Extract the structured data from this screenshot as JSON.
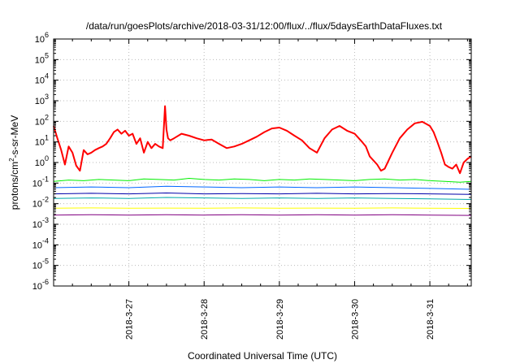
{
  "chart_data": {
    "type": "line",
    "title": "/data/run/goesPlots/archive/2018-03-31/12:00/flux/../flux/5daysEarthDataFluxes.txt",
    "xlabel": "Coordinated Universal Time (UTC)",
    "ylabel_text": "protons/cm",
    "ylabel_sup": "2",
    "ylabel_rest": "-s-sr-MeV",
    "y_scale": "log",
    "ylim_exp": [
      -6,
      6
    ],
    "xlim_days": [
      26.0,
      31.55
    ],
    "grid": true,
    "x_ticks": [
      {
        "label": "2018-3-27",
        "day": 27
      },
      {
        "label": "2018-3-28",
        "day": 28
      },
      {
        "label": "2018-3-29",
        "day": 29
      },
      {
        "label": "2018-3-30",
        "day": 30
      },
      {
        "label": "2018-3-31",
        "day": 31
      }
    ],
    "y_ticks": [
      -6,
      -5,
      -4,
      -3,
      -2,
      -1,
      0,
      1,
      2,
      3,
      4,
      5,
      6
    ],
    "series": [
      {
        "color": "#ff0000",
        "width": 2,
        "x": [
          26.0,
          26.05,
          26.1,
          26.15,
          26.2,
          26.25,
          26.3,
          26.35,
          26.4,
          26.45,
          26.5,
          26.55,
          26.6,
          26.65,
          26.7,
          26.75,
          26.8,
          26.85,
          26.9,
          26.95,
          27.0,
          27.05,
          27.1,
          27.15,
          27.2,
          27.25,
          27.3,
          27.35,
          27.4,
          27.45,
          27.48,
          27.5,
          27.52,
          27.55,
          27.6,
          27.7,
          27.8,
          27.9,
          28.0,
          28.1,
          28.2,
          28.3,
          28.4,
          28.5,
          28.6,
          28.7,
          28.8,
          28.9,
          29.0,
          29.1,
          29.2,
          29.3,
          29.4,
          29.5,
          29.6,
          29.7,
          29.8,
          29.9,
          30.0,
          30.1,
          30.15,
          30.2,
          30.3,
          30.35,
          30.4,
          30.5,
          30.6,
          30.7,
          30.8,
          30.9,
          31.0,
          31.05,
          31.1,
          31.15,
          31.2,
          31.25,
          31.3,
          31.35,
          31.4,
          31.45,
          31.5,
          31.55
        ],
        "y": [
          60,
          15,
          4,
          0.8,
          6,
          3,
          0.7,
          0.4,
          4,
          2.5,
          3,
          4,
          5,
          6,
          8,
          15,
          30,
          40,
          25,
          35,
          20,
          25,
          8,
          15,
          3,
          10,
          5,
          8,
          6,
          5,
          550,
          40,
          15,
          12,
          15,
          25,
          20,
          15,
          12,
          13,
          8,
          5,
          6,
          8,
          12,
          18,
          30,
          45,
          50,
          35,
          20,
          12,
          5,
          3,
          15,
          40,
          60,
          35,
          25,
          10,
          6,
          2,
          0.8,
          0.4,
          0.5,
          3,
          15,
          40,
          80,
          95,
          60,
          30,
          10,
          3,
          0.8,
          0.6,
          0.5,
          0.8,
          0.3,
          1.0,
          1.5,
          2
        ]
      },
      {
        "color": "#00ee00",
        "width": 1,
        "x": [
          26.0,
          26.2,
          26.4,
          26.6,
          26.8,
          27.0,
          27.2,
          27.4,
          27.6,
          27.8,
          28.0,
          28.2,
          28.4,
          28.6,
          28.8,
          29.0,
          29.2,
          29.4,
          29.6,
          29.8,
          30.0,
          30.2,
          30.4,
          30.6,
          30.8,
          31.0,
          31.2,
          31.4,
          31.55
        ],
        "y": [
          0.12,
          0.14,
          0.13,
          0.15,
          0.14,
          0.13,
          0.16,
          0.15,
          0.14,
          0.17,
          0.15,
          0.14,
          0.16,
          0.15,
          0.13,
          0.15,
          0.14,
          0.16,
          0.15,
          0.14,
          0.13,
          0.15,
          0.16,
          0.14,
          0.15,
          0.13,
          0.12,
          0.11,
          0.12
        ]
      },
      {
        "color": "#0066ff",
        "width": 1,
        "x": [
          26.0,
          26.5,
          27.0,
          27.5,
          28.0,
          28.5,
          29.0,
          29.5,
          30.0,
          30.5,
          31.0,
          31.55
        ],
        "y": [
          0.06,
          0.065,
          0.06,
          0.07,
          0.065,
          0.06,
          0.065,
          0.06,
          0.065,
          0.06,
          0.055,
          0.05
        ]
      },
      {
        "color": "#0000aa",
        "width": 1,
        "x": [
          26.0,
          26.5,
          27.0,
          27.5,
          28.0,
          28.5,
          29.0,
          29.5,
          30.0,
          30.5,
          31.0,
          31.55
        ],
        "y": [
          0.03,
          0.032,
          0.03,
          0.033,
          0.03,
          0.031,
          0.03,
          0.032,
          0.03,
          0.031,
          0.03,
          0.028
        ]
      },
      {
        "color": "#00aaaa",
        "width": 1,
        "x": [
          26.0,
          26.5,
          27.0,
          27.5,
          28.0,
          28.5,
          29.0,
          29.5,
          30.0,
          30.5,
          31.0,
          31.55
        ],
        "y": [
          0.018,
          0.019,
          0.018,
          0.02,
          0.019,
          0.018,
          0.019,
          0.018,
          0.019,
          0.018,
          0.017,
          0.016
        ]
      },
      {
        "color": "#ffff00",
        "width": 1,
        "x": [
          26.0,
          26.5,
          27.0,
          27.5,
          28.0,
          28.5,
          29.0,
          29.5,
          30.0,
          30.5,
          31.0,
          31.55
        ],
        "y": [
          0.006,
          0.0062,
          0.006,
          0.0061,
          0.006,
          0.0062,
          0.006,
          0.0061,
          0.006,
          0.0062,
          0.006,
          0.0059
        ]
      },
      {
        "color": "#800080",
        "width": 1,
        "x": [
          26.0,
          26.5,
          27.0,
          27.5,
          28.0,
          28.5,
          29.0,
          29.5,
          30.0,
          30.5,
          31.0,
          31.55
        ],
        "y": [
          0.0028,
          0.0029,
          0.0028,
          0.0029,
          0.0028,
          0.0029,
          0.0028,
          0.0029,
          0.0028,
          0.0029,
          0.0028,
          0.0027
        ]
      }
    ]
  }
}
